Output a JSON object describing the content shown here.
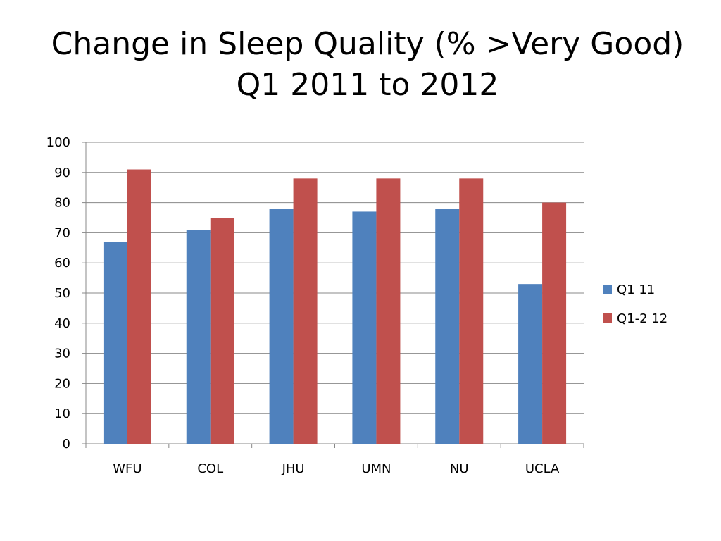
{
  "title": {
    "line1": "Change in Sleep Quality (% >Very Good)",
    "line2": "Q1 2011 to 2012"
  },
  "chart_data": {
    "type": "bar",
    "categories": [
      "WFU",
      "COL",
      "JHU",
      "UMN",
      "NU",
      "UCLA"
    ],
    "series": [
      {
        "name": "Q1 11",
        "color": "#4F81BD",
        "values": [
          67,
          71,
          78,
          77,
          78,
          53
        ]
      },
      {
        "name": "Q1-2 12",
        "color": "#C0504D",
        "values": [
          91,
          75,
          88,
          88,
          88,
          80
        ]
      }
    ],
    "ylim": [
      0,
      100
    ],
    "yticks": [
      0,
      10,
      20,
      30,
      40,
      50,
      60,
      70,
      80,
      90,
      100
    ],
    "grid": true,
    "legend": "right"
  }
}
